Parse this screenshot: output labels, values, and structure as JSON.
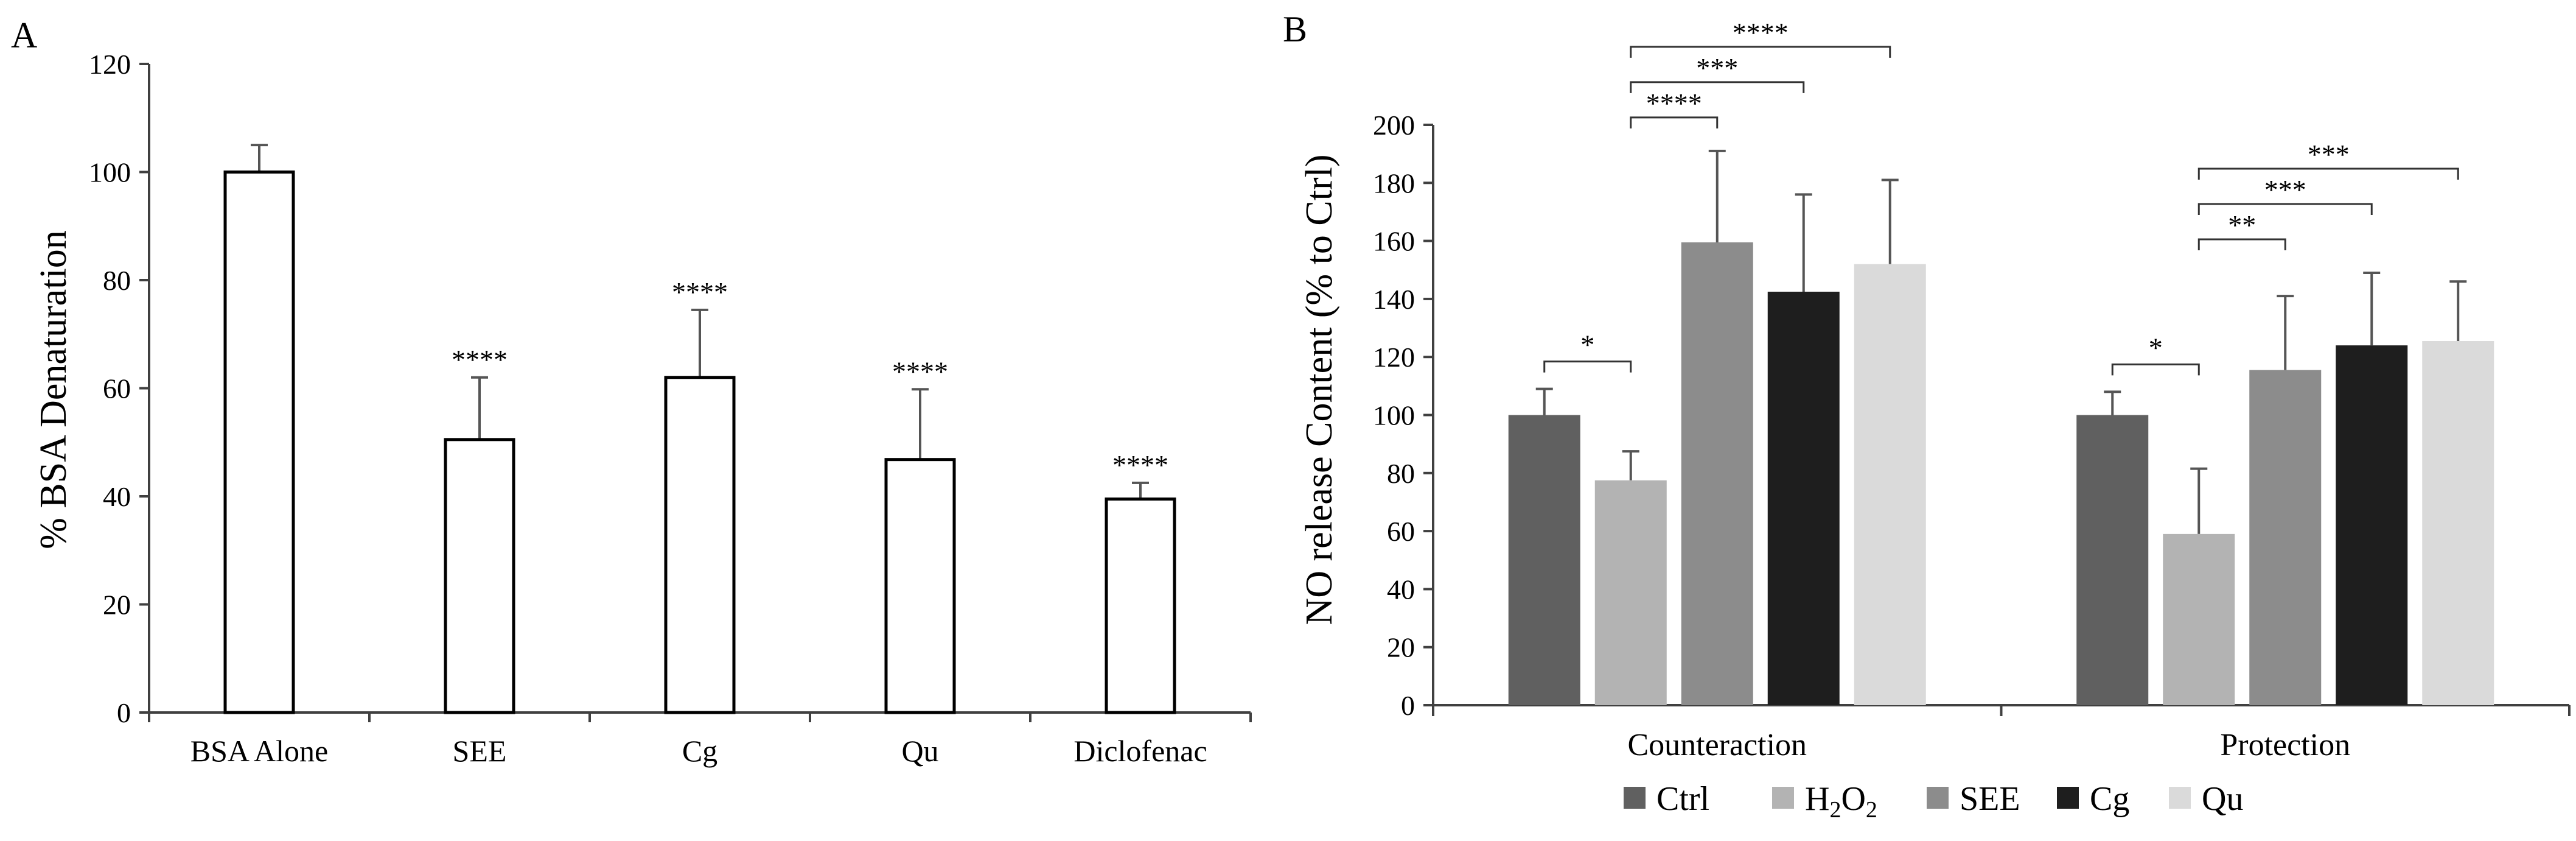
{
  "chart_data": [
    {
      "panel_label": "A",
      "type": "bar",
      "title": "",
      "xlabel": "",
      "ylabel": "% BSA Denaturation",
      "ylim": [
        0,
        120
      ],
      "yticks": [
        0,
        20,
        40,
        60,
        80,
        100,
        120
      ],
      "categories": [
        "BSA  Alone",
        "SEE",
        "Cg",
        "Qu",
        "Diclofenac"
      ],
      "values": [
        100,
        50.5,
        62,
        46.8,
        39.5
      ],
      "errors": [
        5,
        11.5,
        12.5,
        13,
        3
      ],
      "significance": [
        "",
        "****",
        "****",
        "****",
        "****"
      ],
      "bar_color": "#ffffff",
      "grid": false
    },
    {
      "panel_label": "B",
      "type": "bar",
      "title": "",
      "xlabel": "",
      "ylabel": "NO release Content (% to Ctrl)",
      "ylim": [
        0,
        200
      ],
      "yticks": [
        0,
        20,
        40,
        60,
        80,
        100,
        120,
        140,
        160,
        180,
        200
      ],
      "categories": [
        "Counteraction",
        "Protection"
      ],
      "series": [
        {
          "name": "Ctrl",
          "values": [
            100,
            100
          ],
          "errors": [
            9,
            8
          ],
          "color": "#606060"
        },
        {
          "name": "H2O2",
          "values": [
            77.5,
            59
          ],
          "errors": [
            10,
            22.5
          ],
          "color": "#b3b3b3"
        },
        {
          "name": "SEE",
          "values": [
            159.5,
            115.5
          ],
          "errors": [
            31.5,
            25.5
          ],
          "color": "#8c8c8c"
        },
        {
          "name": "Cg",
          "values": [
            142.5,
            124
          ],
          "errors": [
            33.5,
            25
          ],
          "color": "#1e1e1e"
        },
        {
          "name": "Qu",
          "values": [
            152,
            125.5
          ],
          "errors": [
            29,
            20.5
          ],
          "color": "#dadada"
        }
      ],
      "legend_position": "bottom",
      "brackets": [
        {
          "group": 0,
          "from": 0,
          "to": 1,
          "label": "*"
        },
        {
          "group": 0,
          "from": 1,
          "to": 2,
          "label": "****"
        },
        {
          "group": 0,
          "from": 1,
          "to": 3,
          "label": "***"
        },
        {
          "group": 0,
          "from": 1,
          "to": 4,
          "label": "****"
        },
        {
          "group": 1,
          "from": 0,
          "to": 1,
          "label": "*"
        },
        {
          "group": 1,
          "from": 1,
          "to": 2,
          "label": "**"
        },
        {
          "group": 1,
          "from": 1,
          "to": 3,
          "label": "***"
        },
        {
          "group": 1,
          "from": 1,
          "to": 4,
          "label": "***"
        }
      ],
      "grid": false
    }
  ]
}
